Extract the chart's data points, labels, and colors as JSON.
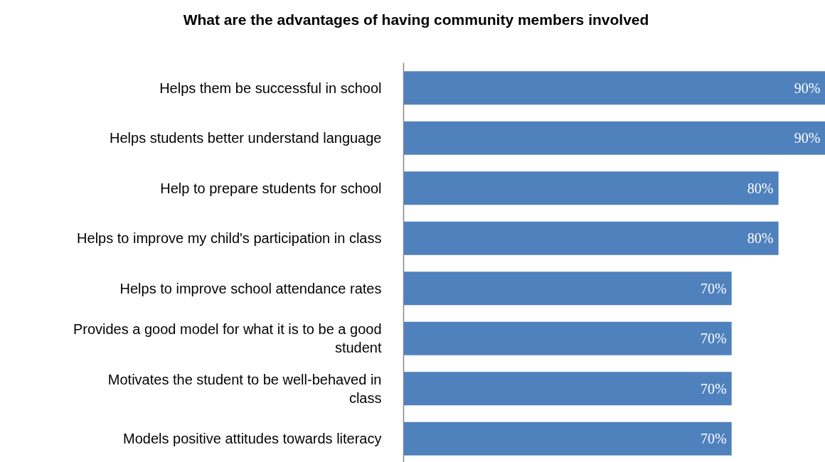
{
  "chart_data": {
    "type": "bar",
    "orientation": "horizontal",
    "title": "What are the advantages of having community members involved",
    "categories": [
      "Helps them be successful in school",
      "Helps students better understand language",
      "Help to prepare students for school",
      "Helps to improve my child's participation in class",
      "Helps to improve school attendance rates",
      "Provides a good model for what it is to be a good\nstudent",
      "Motivates the student to be well-behaved in\nclass",
      "Models positive attitudes towards literacy"
    ],
    "values": [
      90,
      90,
      80,
      80,
      70,
      70,
      70,
      70
    ],
    "value_labels": [
      "90%",
      "90%",
      "80%",
      "80%",
      "70%",
      "70%",
      "70%",
      "70%"
    ],
    "color": "#4f81bd",
    "grid": false
  }
}
